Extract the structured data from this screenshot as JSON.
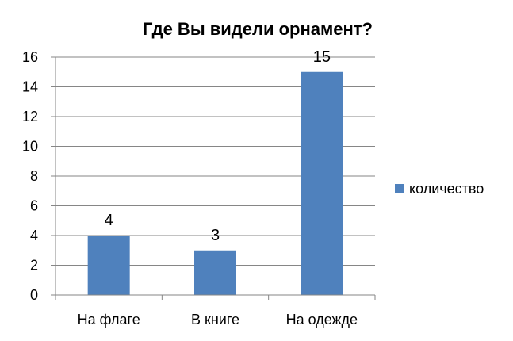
{
  "chart_data": {
    "type": "bar",
    "title": "Где Вы видели орнамент?",
    "xlabel": "",
    "ylabel": "",
    "categories": [
      "На флаге",
      "В книге",
      "На одежде"
    ],
    "series": [
      {
        "name": "количество",
        "values": [
          4,
          3,
          15
        ],
        "color": "#4f81bd"
      }
    ],
    "ylim": [
      0,
      16
    ],
    "y_ticks": [
      0,
      2,
      4,
      6,
      8,
      10,
      12,
      14,
      16
    ],
    "grid": true,
    "legend_position": "right",
    "data_labels": true
  }
}
